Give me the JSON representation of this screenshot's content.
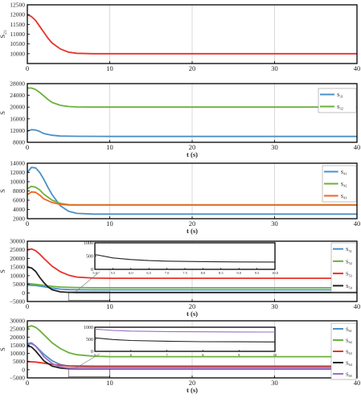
{
  "figure": {
    "colors": {
      "blue": "#4a90c8",
      "red": "#e8312a",
      "green": "#6bb13a",
      "orange": "#f26522",
      "black": "#222222",
      "purple": "#9b6fc4",
      "grid": "#d0d0d0"
    }
  },
  "chart_data": [
    {
      "type": "line",
      "ylabel": "S21",
      "xlabel": "",
      "xlim": [
        0,
        40
      ],
      "ylim": [
        9500,
        12500
      ],
      "xticks": [
        0,
        10,
        20,
        30,
        40
      ],
      "yticks": [
        10000,
        10500,
        11000,
        11500,
        12000,
        12500
      ],
      "grid": "vertical",
      "series": [
        {
          "color": "red",
          "x": [
            0,
            0.5,
            1,
            1.5,
            2,
            2.5,
            3,
            4,
            5,
            6,
            8,
            10,
            40
          ],
          "y": [
            12000,
            11900,
            11700,
            11400,
            11100,
            10800,
            10550,
            10250,
            10080,
            10020,
            10000,
            10000,
            10000
          ]
        }
      ]
    },
    {
      "type": "line",
      "ylabel": "S",
      "xlabel": "t (s)",
      "xlim": [
        0,
        40
      ],
      "ylim": [
        8000,
        28000
      ],
      "xticks": [
        0,
        10,
        20,
        30,
        40
      ],
      "yticks": [
        8000,
        12000,
        16000,
        20000,
        24000,
        28000
      ],
      "grid": "vertical",
      "legend_position": "right",
      "series": [
        {
          "name": "S31",
          "color": "blue",
          "x": [
            0,
            0.5,
            1,
            1.5,
            2,
            3,
            4,
            6,
            10,
            40
          ],
          "y": [
            11800,
            12300,
            12200,
            11700,
            11000,
            10400,
            10150,
            10050,
            10000,
            10000
          ]
        },
        {
          "name": "S32",
          "color": "green",
          "x": [
            0,
            0.5,
            1,
            1.5,
            2,
            2.5,
            3,
            4,
            5,
            6,
            8,
            40
          ],
          "y": [
            26500,
            26500,
            26000,
            25000,
            23800,
            22600,
            21600,
            20600,
            20200,
            20050,
            20000,
            20000
          ]
        }
      ]
    },
    {
      "type": "line",
      "ylabel": "S",
      "xlabel": "t (s)",
      "xlim": [
        0,
        40
      ],
      "ylim": [
        2000,
        14000
      ],
      "xticks": [
        0,
        10,
        20,
        30,
        40
      ],
      "yticks": [
        2000,
        4000,
        6000,
        8000,
        10000,
        12000,
        14000
      ],
      "grid": "vertical",
      "legend_position": "right",
      "series": [
        {
          "name": "S41",
          "color": "blue",
          "x": [
            0,
            0.5,
            1,
            1.5,
            2,
            2.5,
            3,
            4,
            5,
            6,
            8,
            10,
            40
          ],
          "y": [
            12000,
            13100,
            13000,
            12000,
            10500,
            8800,
            7200,
            4800,
            3600,
            3150,
            3000,
            3000,
            3000
          ]
        },
        {
          "name": "S42",
          "color": "green",
          "x": [
            0,
            0.5,
            1,
            1.5,
            2,
            3,
            4,
            5,
            6,
            8,
            40
          ],
          "y": [
            8500,
            9000,
            8800,
            8200,
            7300,
            6000,
            5300,
            5050,
            5000,
            5000,
            5000
          ]
        },
        {
          "name": "S43",
          "color": "orange",
          "x": [
            0,
            0.5,
            1,
            1.5,
            2,
            3,
            4,
            5,
            6,
            8,
            40
          ],
          "y": [
            7200,
            7800,
            7700,
            7100,
            6300,
            5500,
            5100,
            4950,
            4950,
            4950,
            4950
          ]
        }
      ]
    },
    {
      "type": "line",
      "ylabel": "S",
      "xlabel": "t (s)",
      "xlim": [
        0,
        40
      ],
      "ylim": [
        -5000,
        30000
      ],
      "xticks": [
        0,
        10,
        20,
        30,
        40
      ],
      "yticks": [
        -5000,
        0,
        5000,
        10000,
        15000,
        20000,
        25000,
        30000
      ],
      "grid": "vertical",
      "legend_position": "right",
      "series": [
        {
          "name": "S51",
          "color": "blue",
          "x": [
            0,
            1,
            2,
            3,
            4,
            5,
            6,
            8,
            10,
            40
          ],
          "y": [
            4500,
            4300,
            3600,
            2800,
            2200,
            1900,
            1800,
            1750,
            1750,
            1750
          ]
        },
        {
          "name": "S52",
          "color": "green",
          "x": [
            0,
            1,
            2,
            3,
            4,
            5,
            6,
            8,
            10,
            40
          ],
          "y": [
            5500,
            5000,
            4400,
            3800,
            3400,
            3200,
            3100,
            3000,
            3000,
            3000
          ]
        },
        {
          "name": "S53",
          "color": "red",
          "x": [
            0,
            0.5,
            1,
            1.5,
            2,
            3,
            4,
            5,
            6,
            8,
            10,
            40
          ],
          "y": [
            25000,
            25500,
            24500,
            22500,
            20000,
            15500,
            12300,
            10300,
            9200,
            8600,
            8500,
            8500
          ]
        },
        {
          "name": "S54",
          "color": "black",
          "x": [
            0,
            0.5,
            1,
            1.5,
            2,
            2.5,
            3,
            4,
            5,
            6,
            8,
            40
          ],
          "y": [
            15000,
            14500,
            12500,
            9000,
            6000,
            3500,
            1800,
            600,
            300,
            250,
            250,
            250
          ]
        }
      ],
      "inset": {
        "xlim": [
          5,
          10
        ],
        "ylim": [
          0,
          1000
        ],
        "xticks": [
          5,
          5.5,
          6,
          6.5,
          7,
          7.5,
          8,
          8.5,
          9,
          9.5,
          10
        ],
        "yticks": [
          0,
          500,
          1000
        ],
        "series": [
          {
            "color": "black",
            "x": [
              5,
              5.5,
              6,
              6.5,
              7,
              8,
              9,
              10
            ],
            "y": [
              560,
              430,
              370,
              330,
              310,
              290,
              280,
              275
            ]
          }
        ]
      }
    },
    {
      "type": "line",
      "ylabel": "S",
      "xlabel": "t (s)",
      "xlim": [
        0,
        40
      ],
      "ylim": [
        -5000,
        30000
      ],
      "xticks": [
        0,
        10,
        20,
        30,
        40
      ],
      "yticks": [
        -5000,
        0,
        5000,
        10000,
        15000,
        20000,
        25000,
        30000
      ],
      "grid": "vertical",
      "legend_position": "right",
      "series": [
        {
          "name": "S61",
          "color": "blue",
          "x": [
            0,
            0.5,
            1,
            1.5,
            2,
            3,
            4,
            5,
            6,
            8,
            10,
            40
          ],
          "y": [
            15500,
            16000,
            14500,
            12000,
            9500,
            5500,
            3200,
            2200,
            1900,
            1800,
            1800,
            1800
          ]
        },
        {
          "name": "S62",
          "color": "green",
          "x": [
            0,
            0.5,
            1,
            1.5,
            2,
            3,
            4,
            5,
            6,
            8,
            10,
            40
          ],
          "y": [
            26000,
            27000,
            26000,
            24000,
            21500,
            16500,
            13000,
            10500,
            9200,
            8300,
            8000,
            8000
          ]
        },
        {
          "name": "S63",
          "color": "red",
          "x": [
            0,
            1,
            2,
            3,
            4,
            5,
            6,
            8,
            10,
            40
          ],
          "y": [
            5000,
            4700,
            4000,
            3300,
            2700,
            2400,
            2300,
            2200,
            2200,
            2200
          ]
        },
        {
          "name": "S64",
          "color": "black",
          "x": [
            0,
            0.5,
            1,
            1.5,
            2,
            3,
            4,
            5,
            6,
            8,
            40
          ],
          "y": [
            14500,
            14000,
            11500,
            8500,
            5500,
            2200,
            1000,
            600,
            550,
            550,
            550
          ]
        },
        {
          "name": "S65",
          "color": "purple",
          "x": [
            0,
            0.5,
            1,
            1.5,
            2,
            3,
            4,
            5,
            6,
            8,
            40
          ],
          "y": [
            16000,
            16500,
            14500,
            11500,
            8000,
            3800,
            1700,
            1000,
            850,
            850,
            850
          ]
        }
      ],
      "inset": {
        "xlim": [
          5,
          10
        ],
        "ylim": [
          0,
          1000
        ],
        "xticks": [
          5,
          6,
          7,
          8,
          9,
          10
        ],
        "yticks": [
          0,
          500,
          1000
        ],
        "series": [
          {
            "color": "purple",
            "x": [
              5,
              5.5,
              6,
              7,
              8,
              9,
              10
            ],
            "y": [
              920,
              870,
              840,
              820,
              810,
              805,
              800
            ]
          },
          {
            "color": "black",
            "x": [
              5,
              5.5,
              6,
              7,
              8,
              9,
              10
            ],
            "y": [
              560,
              490,
              450,
              420,
              400,
              395,
              390
            ]
          }
        ]
      }
    }
  ]
}
